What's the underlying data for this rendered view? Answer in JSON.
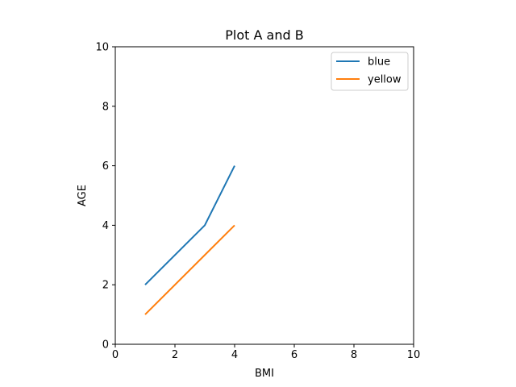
{
  "chart_data": {
    "type": "line",
    "title": "Plot A and B",
    "xlabel": "BMI",
    "ylabel": "AGE",
    "xlim": [
      0,
      10
    ],
    "ylim": [
      0,
      10
    ],
    "xticks": [
      0,
      2,
      4,
      6,
      8,
      10
    ],
    "yticks": [
      0,
      2,
      4,
      6,
      8,
      10
    ],
    "grid": false,
    "legend_placement": "top-right",
    "series": [
      {
        "name": "blue",
        "color": "#1f77b4",
        "points": [
          {
            "x": 1,
            "y": 2
          },
          {
            "x": 3,
            "y": 4
          },
          {
            "x": 4,
            "y": 6
          }
        ]
      },
      {
        "name": "yellow",
        "color": "#ff7f0e",
        "points": [
          {
            "x": 1,
            "y": 1
          },
          {
            "x": 4,
            "y": 4
          }
        ]
      }
    ]
  }
}
